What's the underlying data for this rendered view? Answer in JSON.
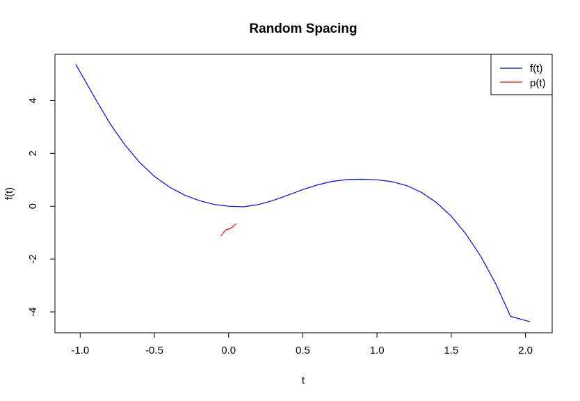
{
  "chart_data": {
    "type": "line",
    "title": "Random Spacing",
    "xlabel": "t",
    "ylabel": "f(t)",
    "xlim": [
      -1.17,
      2.18
    ],
    "ylim": [
      -4.79,
      5.75
    ],
    "x_ticks": [
      {
        "value": -1.0,
        "label": "-1.0"
      },
      {
        "value": -0.5,
        "label": "-0.5"
      },
      {
        "value": 0.0,
        "label": "0.0"
      },
      {
        "value": 0.5,
        "label": "0.5"
      },
      {
        "value": 1.0,
        "label": "1.0"
      },
      {
        "value": 1.5,
        "label": "1.5"
      },
      {
        "value": 2.0,
        "label": "2.0"
      }
    ],
    "y_ticks": [
      {
        "value": -4,
        "label": "-4"
      },
      {
        "value": -2,
        "label": "-2"
      },
      {
        "value": 0,
        "label": "0"
      },
      {
        "value": 2,
        "label": "2"
      },
      {
        "value": 4,
        "label": "4"
      }
    ],
    "grid": false,
    "legend_position": "top-right",
    "series": [
      {
        "name": "f(t)",
        "color": "#0000ff",
        "x": [
          -1.03,
          -0.9,
          -0.8,
          -0.7,
          -0.6,
          -0.5,
          -0.4,
          -0.3,
          -0.2,
          -0.1,
          0.0,
          0.1,
          0.2,
          0.3,
          0.4,
          0.5,
          0.6,
          0.7,
          0.8,
          0.9,
          1.0,
          1.1,
          1.2,
          1.3,
          1.4,
          1.5,
          1.6,
          1.7,
          1.8,
          1.9,
          2.03
        ],
        "y": [
          5.37,
          4.09,
          3.14,
          2.33,
          1.66,
          1.13,
          0.73,
          0.43,
          0.22,
          0.07,
          0.0,
          -0.02,
          0.06,
          0.22,
          0.42,
          0.63,
          0.81,
          0.94,
          1.01,
          1.02,
          1.0,
          0.93,
          0.78,
          0.52,
          0.14,
          -0.38,
          -1.06,
          -1.91,
          -2.94,
          -4.17,
          -4.37
        ]
      },
      {
        "name": "p(t)",
        "color": "#ff0000",
        "x": [
          -0.05,
          -0.03,
          -0.015,
          0.005,
          0.02,
          0.035,
          0.05
        ],
        "y": [
          -1.12,
          -0.97,
          -0.88,
          -0.86,
          -0.82,
          -0.74,
          -0.67
        ]
      }
    ]
  }
}
